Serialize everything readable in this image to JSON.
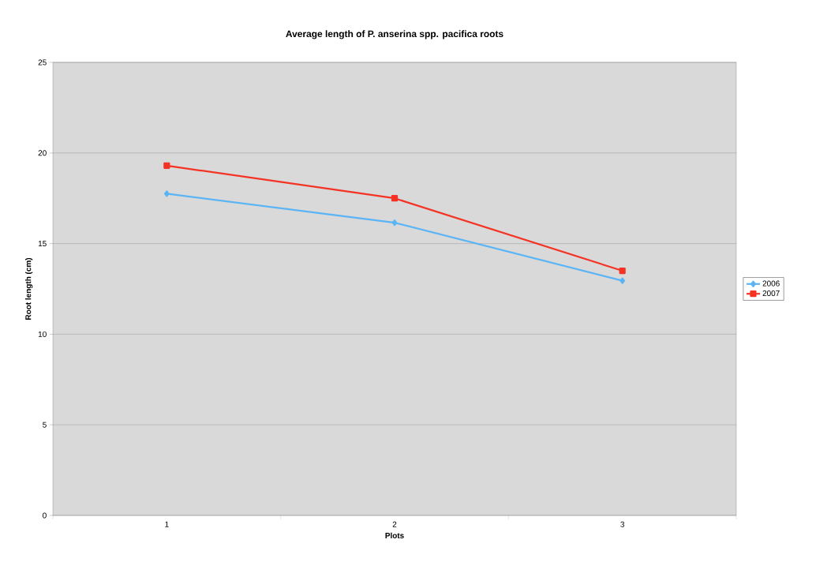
{
  "chart_data": {
    "type": "line",
    "title": "Average length of P. anserina spp. pacifica roots",
    "xlabel": "Plots",
    "ylabel": "Root length (cm)",
    "categories": [
      "1",
      "2",
      "3"
    ],
    "series": [
      {
        "name": "2006",
        "color": "#5ab4f5",
        "values": [
          17.75,
          16.15,
          12.95
        ],
        "marker": "diamond"
      },
      {
        "name": "2007",
        "color": "#f53324",
        "values": [
          19.3,
          17.5,
          13.5
        ],
        "marker": "square"
      }
    ],
    "ylim": [
      0,
      25
    ],
    "yticks": [
      0,
      5,
      10,
      15,
      20,
      25
    ],
    "grid": "y",
    "legend": "right"
  }
}
